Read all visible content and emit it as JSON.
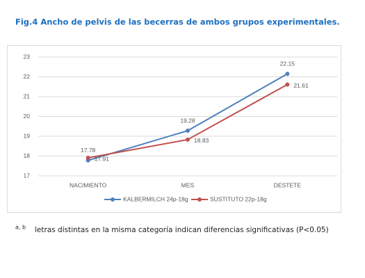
{
  "chart_data": {
    "type": "line",
    "title": "Fig.4 Ancho de pelvis de las becerras de ambos grupos experimentales.",
    "categories": [
      "NACIMIENTO",
      "MES",
      "DESTETE"
    ],
    "series": [
      {
        "name": "KALBERMILCH 24p-18g",
        "color": "#4f81bd",
        "values": [
          17.78,
          19.28,
          22.15
        ]
      },
      {
        "name": "SUSTITUTO 22p-18g",
        "color": "#c0504d",
        "values": [
          17.91,
          18.83,
          21.61
        ]
      }
    ],
    "ylim": [
      17,
      23
    ],
    "yticks": [
      17,
      18,
      19,
      20,
      21,
      22,
      23
    ],
    "grid": true,
    "legend": "bottom"
  },
  "footnote": {
    "marks": "a, b",
    "text": "letras distintas en la misma categoría indican diferencias significativas (P<0.05)"
  }
}
